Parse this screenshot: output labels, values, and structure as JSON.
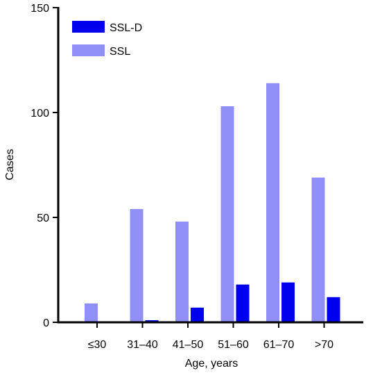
{
  "chart_data": {
    "type": "bar",
    "categories": [
      "≤30",
      "31–40",
      "41–50",
      "51–60",
      "61–70",
      ">70"
    ],
    "series": [
      {
        "name": "SSL",
        "color": "#8f8ff7",
        "values": [
          9,
          54,
          48,
          103,
          114,
          69
        ]
      },
      {
        "name": "SSL-D",
        "color": "#0000ee",
        "values": [
          0,
          1,
          7,
          18,
          19,
          12
        ]
      }
    ],
    "legend": [
      {
        "name": "SSL-D",
        "color": "#0000ee"
      },
      {
        "name": "SSL",
        "color": "#8f8ff7"
      }
    ],
    "legend_position": "top-left",
    "xlabel": "Age, years",
    "ylabel": "Cases",
    "ylim": [
      0,
      150
    ],
    "yticks": [
      0,
      50,
      100,
      150
    ],
    "grid": false
  }
}
